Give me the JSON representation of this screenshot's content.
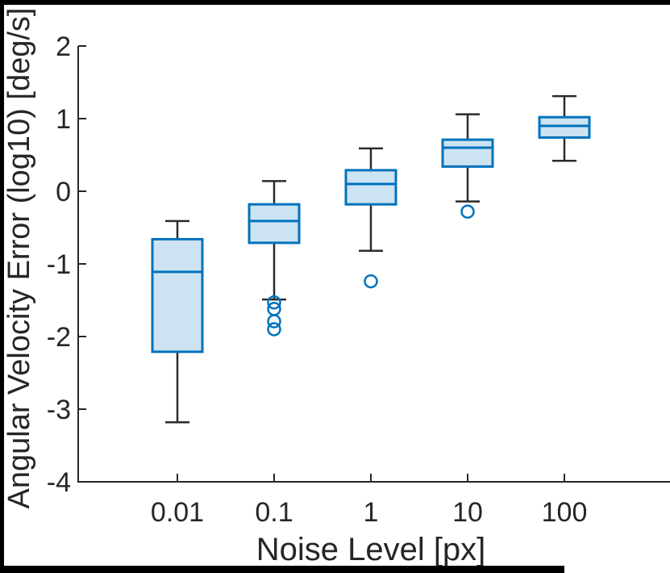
{
  "figure": {
    "background": "#FFFFFF",
    "frame_color": "#000000"
  },
  "chart_data": {
    "type": "box",
    "title": "",
    "xlabel": "Noise Level [px]",
    "ylabel": "Angular Velocity Error (log10) [deg/s]",
    "categories": [
      "0.01",
      "0.1",
      "1",
      "10",
      "100"
    ],
    "ylim": [
      -4,
      2
    ],
    "yticks": [
      2,
      1,
      0,
      -1,
      -2,
      -3,
      -4
    ],
    "grid": false,
    "legend_position": "none",
    "series": [
      {
        "category": "0.01",
        "whisker_low": -3.18,
        "q1": -2.21,
        "median": -1.11,
        "q3": -0.66,
        "whisker_high": -0.41,
        "outliers": []
      },
      {
        "category": "0.1",
        "whisker_low": -1.49,
        "q1": -0.71,
        "median": -0.41,
        "q3": -0.18,
        "whisker_high": 0.14,
        "outliers": [
          -1.53,
          -1.62,
          -1.79,
          -1.9
        ]
      },
      {
        "category": "1",
        "whisker_low": -0.82,
        "q1": -0.18,
        "median": 0.1,
        "q3": 0.29,
        "whisker_high": 0.59,
        "outliers": [
          -1.24
        ]
      },
      {
        "category": "10",
        "whisker_low": -0.14,
        "q1": 0.34,
        "median": 0.6,
        "q3": 0.71,
        "whisker_high": 1.06,
        "outliers": [
          -0.28
        ]
      },
      {
        "category": "100",
        "whisker_low": 0.42,
        "q1": 0.74,
        "median": 0.9,
        "q3": 1.02,
        "whisker_high": 1.31,
        "outliers": []
      }
    ],
    "colors": {
      "box_fill": "#CCE3F2",
      "box_edge": "#0072BD",
      "median": "#0072BD",
      "whisker": "#2B2B2B",
      "outlier_edge": "#0072BD",
      "axis": "#262626",
      "tick_label": "#262626"
    }
  }
}
